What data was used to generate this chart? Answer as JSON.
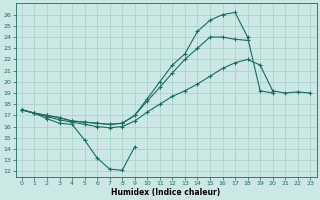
{
  "xlabel": "Humidex (Indice chaleur)",
  "bg_color": "#cce8e4",
  "grid_color": "#aad4cc",
  "line_color": "#1a6b60",
  "xlim": [
    -0.5,
    23.5
  ],
  "ylim": [
    11.5,
    27
  ],
  "yticks": [
    12,
    13,
    14,
    15,
    16,
    17,
    18,
    19,
    20,
    21,
    22,
    23,
    24,
    25,
    26
  ],
  "xticks": [
    0,
    1,
    2,
    3,
    4,
    5,
    6,
    7,
    8,
    9,
    10,
    11,
    12,
    13,
    14,
    15,
    16,
    17,
    18,
    19,
    20,
    21,
    22,
    23
  ],
  "series": [
    {
      "x": [
        0,
        1,
        2,
        3,
        4,
        5,
        6,
        7,
        8,
        9
      ],
      "y": [
        17.5,
        17.2,
        16.7,
        16.3,
        16.2,
        14.8,
        13.2,
        12.2,
        12.1,
        14.2
      ]
    },
    {
      "x": [
        0,
        1,
        2,
        3,
        4,
        5,
        6,
        7,
        8,
        9,
        10,
        11,
        12,
        13,
        14,
        15,
        16,
        17,
        18,
        19,
        20,
        21,
        22,
        23
      ],
      "y": [
        17.5,
        17.2,
        16.9,
        16.6,
        16.4,
        16.2,
        16.0,
        15.9,
        16.0,
        16.5,
        17.3,
        18.0,
        18.7,
        19.2,
        19.8,
        20.5,
        21.2,
        21.7,
        22.0,
        21.5,
        19.2,
        19.0,
        19.1,
        19.0
      ]
    },
    {
      "x": [
        0,
        1,
        2,
        3,
        4,
        5,
        6,
        7,
        8,
        9,
        10,
        11,
        12,
        13,
        14,
        15,
        16,
        17,
        18
      ],
      "y": [
        17.5,
        17.2,
        17.0,
        16.8,
        16.5,
        16.4,
        16.3,
        16.2,
        16.3,
        17.0,
        18.3,
        19.5,
        20.8,
        22.0,
        23.0,
        24.0,
        24.0,
        23.8,
        23.7
      ]
    },
    {
      "x": [
        0,
        1,
        2,
        3,
        4,
        5,
        6,
        7,
        8,
        9,
        10,
        11,
        12,
        13,
        14,
        15,
        16,
        17,
        18,
        19,
        20
      ],
      "y": [
        17.5,
        17.2,
        17.0,
        16.8,
        16.5,
        16.4,
        16.3,
        16.2,
        16.3,
        17.0,
        18.5,
        20.0,
        21.5,
        22.5,
        24.5,
        25.5,
        26.0,
        26.2,
        24.0,
        19.2,
        19.0
      ]
    }
  ]
}
